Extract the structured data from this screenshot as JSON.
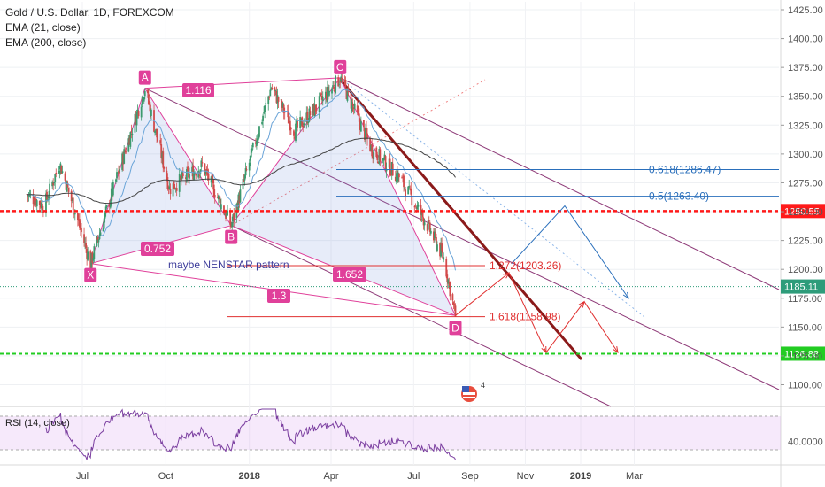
{
  "header": {
    "title": "Gold / U.S. Dollar, 1D, FOREXCOM",
    "indicators": [
      "EMA (21, close)",
      "EMA (200, close)"
    ]
  },
  "rsi": {
    "label": "RSI (14, close)",
    "tick": "40.0000",
    "value": 40,
    "ylim": [
      0,
      100
    ],
    "band_upper": 70,
    "band_lower": 30
  },
  "chart_data": {
    "type": "line",
    "ylim": [
      1090,
      1430
    ],
    "y_ticks": [
      1100,
      1125,
      1150,
      1175,
      1200,
      1225,
      1250,
      1275,
      1300,
      1325,
      1350,
      1375,
      1400,
      1425
    ],
    "x_ticks": [
      "Jul",
      "Oct",
      "2018",
      "Apr",
      "Jul",
      "Sep",
      "Nov",
      "2019",
      "Mar"
    ],
    "price_tags": [
      {
        "label": "1250.55",
        "value": 1250.55,
        "color": "#ff1a1a"
      },
      {
        "label": "1185.11",
        "value": 1185.11,
        "color": "#2e9c7a"
      },
      {
        "label": "1126.88",
        "value": 1126.88,
        "color": "#22cc22"
      }
    ],
    "pattern_points": [
      {
        "label": "X",
        "date": "2017-07-10",
        "value": 1205
      },
      {
        "label": "A",
        "date": "2017-09-08",
        "value": 1357
      },
      {
        "label": "B",
        "date": "2017-12-12",
        "value": 1238
      },
      {
        "label": "C",
        "date": "2018-04-11",
        "value": 1366
      },
      {
        "label": "D",
        "date": "2018-08-16",
        "value": 1160
      }
    ],
    "ratio_labels": [
      "1.116",
      "0.752",
      "1.652",
      "1.3"
    ],
    "pattern_note": "maybe NENSTAR pattern",
    "fib_levels": [
      {
        "label": "0.618(1286.47)",
        "value": 1286.47,
        "color": "#2a6fbb"
      },
      {
        "label": "0.5(1263.40)",
        "value": 1263.4,
        "color": "#2a6fbb"
      },
      {
        "label": "1.272(1203.26)",
        "value": 1203.26,
        "color": "#e03030"
      },
      {
        "label": "1.618(1158.98)",
        "value": 1158.98,
        "color": "#e03030"
      }
    ],
    "badge_count": "4"
  }
}
